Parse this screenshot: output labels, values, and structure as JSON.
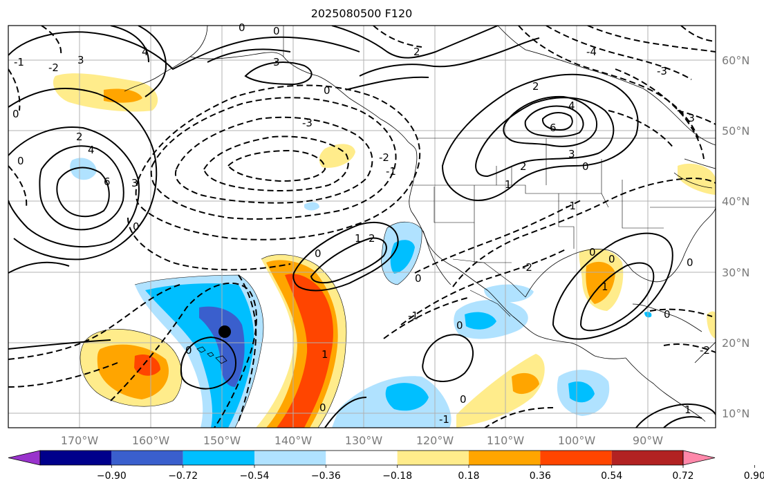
{
  "title": "2025080500 F120",
  "map": {
    "lon_labels": [
      "170°W",
      "160°W",
      "150°W",
      "140°W",
      "130°W",
      "120°W",
      "110°W",
      "100°W",
      "90°W"
    ],
    "lat_labels": [
      "60°N",
      "50°N",
      "40°N",
      "30°N",
      "20°N",
      "10°N"
    ],
    "marker": "filled-circle"
  },
  "colorbar": {
    "labels": [
      "−0.90",
      "−0.72",
      "−0.54",
      "−0.36",
      "−0.18",
      "0.18",
      "0.36",
      "0.54",
      "0.72",
      "0.90"
    ],
    "colors": [
      "#9933cc",
      "#00008b",
      "#3a5fcd",
      "#00bfff",
      "#b0e2ff",
      "#ffffff",
      "#ffec8b",
      "#ffa500",
      "#ff4500",
      "#b22222",
      "#ff88aa"
    ]
  },
  "contour_labels": [
    "0",
    "1",
    "2",
    "3",
    "4",
    "-1",
    "-2",
    "-3",
    "-4"
  ]
}
